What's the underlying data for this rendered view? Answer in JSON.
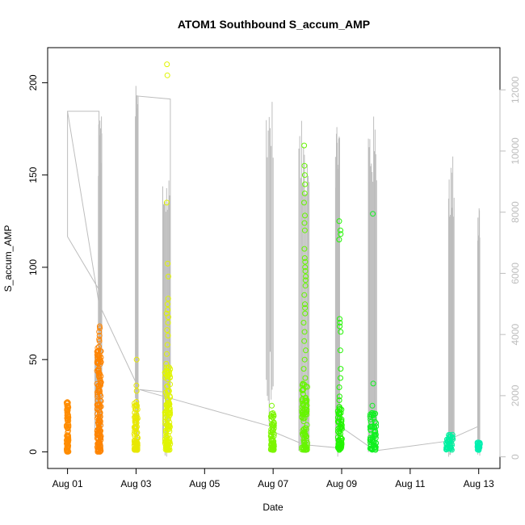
{
  "chart_data": {
    "type": "scatter",
    "title": "ATOM1 Southbound S_accum_AMP",
    "xlabel": "Date",
    "ylabel": "S_accum_AMP",
    "xlim_days": [
      -0.58,
      12.62
    ],
    "ylim": [
      -9,
      219
    ],
    "y2lim": [
      -380,
      13380
    ],
    "x_ticks": [
      "Aug 01",
      "Aug 03",
      "Aug 05",
      "Aug 07",
      "Aug 09",
      "Aug 11",
      "Aug 13"
    ],
    "x_tick_days": [
      0,
      2,
      4,
      6,
      8,
      10,
      12
    ],
    "y_ticks": [
      0,
      50,
      100,
      150,
      200
    ],
    "y2_ticks": [
      0,
      2000,
      4000,
      6000,
      8000,
      10000,
      12000
    ],
    "colors": {
      "line_series": "#bdbdbd",
      "box": "#000000",
      "right_axis": "#bdbdbd"
    },
    "point_series": [
      {
        "day": 0.0,
        "color": "#ff8c00",
        "width": 0.06,
        "y_min": 0,
        "y_max": 27,
        "ys": [
          1,
          1,
          13,
          15,
          17,
          18,
          19,
          20,
          21,
          22,
          22,
          23,
          24,
          25,
          27
        ]
      },
      {
        "day": 0.92,
        "color": "#ff8400",
        "width": 0.12,
        "y_min": 0,
        "y_max": 58,
        "ys": [
          60,
          61,
          63,
          65,
          67,
          68,
          43,
          45,
          48,
          52,
          55
        ]
      },
      {
        "day": 2.0,
        "color": "#e8e800",
        "width": 0.1,
        "y_min": 1,
        "y_max": 30,
        "ys": [
          33,
          36,
          50
        ]
      },
      {
        "day": 2.92,
        "color": "#e0f500",
        "width": 0.16,
        "y_min": 1,
        "y_max": 48,
        "ys": [
          53,
          58,
          63,
          66,
          70,
          73,
          75,
          77,
          80,
          83,
          95,
          102,
          135,
          204,
          210
        ]
      },
      {
        "day": 5.98,
        "color": "#7cf500",
        "width": 0.1,
        "y_min": 1,
        "y_max": 22,
        "ys": [
          25
        ]
      },
      {
        "day": 6.92,
        "color": "#66f500",
        "width": 0.16,
        "y_min": 1,
        "y_max": 37,
        "ys": [
          40,
          45,
          50,
          55,
          60,
          65,
          70,
          75,
          78,
          80,
          85,
          90,
          93,
          95,
          98,
          100,
          103,
          105,
          110,
          120,
          124,
          128,
          135,
          140,
          145,
          150,
          155,
          166
        ]
      },
      {
        "day": 7.95,
        "color": "#22f500",
        "width": 0.12,
        "y_min": 1,
        "y_max": 25,
        "ys": [
          28,
          30,
          35,
          40,
          45,
          55,
          65,
          68,
          70,
          72,
          115,
          118,
          120,
          125
        ]
      },
      {
        "day": 8.92,
        "color": "#10f020",
        "width": 0.18,
        "y_min": 1,
        "y_max": 22,
        "ys": [
          25,
          37,
          129
        ]
      },
      {
        "day": 11.15,
        "color": "#00f0a0",
        "width": 0.2,
        "y_min": 1,
        "y_max": 10,
        "ys": []
      },
      {
        "day": 12.0,
        "color": "#00f0b0",
        "width": 0.08,
        "y_min": 1,
        "y_max": 6,
        "ys": []
      }
    ],
    "spikes": [
      {
        "day": 0.85,
        "y2_base": 2000,
        "y2_max": 3500,
        "count": 8,
        "spread": 0.05
      },
      {
        "day": 0.95,
        "y2_base": 1000,
        "y2_max": 11200,
        "count": 12,
        "spread": 0.05
      },
      {
        "day": 2.02,
        "y2_base": 2200,
        "y2_max": 12600,
        "count": 6,
        "spread": 0.04
      },
      {
        "day": 2.88,
        "y2_base": 2000,
        "y2_max": 9400,
        "count": 10,
        "spread": 0.1
      },
      {
        "day": 5.9,
        "y2_base": 3600,
        "y2_max": 11800,
        "count": 8,
        "spread": 0.1
      },
      {
        "day": 6.9,
        "y2_base": 500,
        "y2_max": 11000,
        "count": 12,
        "spread": 0.15
      },
      {
        "day": 7.88,
        "y2_base": 1200,
        "y2_max": 11300,
        "count": 10,
        "spread": 0.06
      },
      {
        "day": 8.9,
        "y2_base": 1200,
        "y2_max": 11200,
        "count": 12,
        "spread": 0.12
      },
      {
        "day": 11.2,
        "y2_base": 500,
        "y2_max": 10000,
        "count": 10,
        "spread": 0.08
      },
      {
        "day": 12.0,
        "y2_base": 300,
        "y2_max": 8700,
        "count": 8,
        "spread": 0.03
      }
    ],
    "connector_line_y2": [
      [
        0.0,
        11300
      ],
      [
        0.0,
        7200
      ],
      [
        0.9,
        5500
      ],
      [
        0.92,
        11300
      ],
      [
        0.0,
        11300
      ],
      [
        0.92,
        5000
      ],
      [
        2.05,
        2300
      ],
      [
        2.0,
        11800
      ],
      [
        3.0,
        11700
      ],
      [
        3.0,
        2100
      ],
      [
        2.1,
        2200
      ],
      [
        5.9,
        1000
      ],
      [
        6.05,
        800
      ],
      [
        6.9,
        400
      ],
      [
        7.85,
        300
      ],
      [
        7.95,
        1000
      ],
      [
        8.85,
        300
      ],
      [
        9.0,
        200
      ],
      [
        11.0,
        500
      ],
      [
        12.0,
        1000
      ]
    ]
  }
}
